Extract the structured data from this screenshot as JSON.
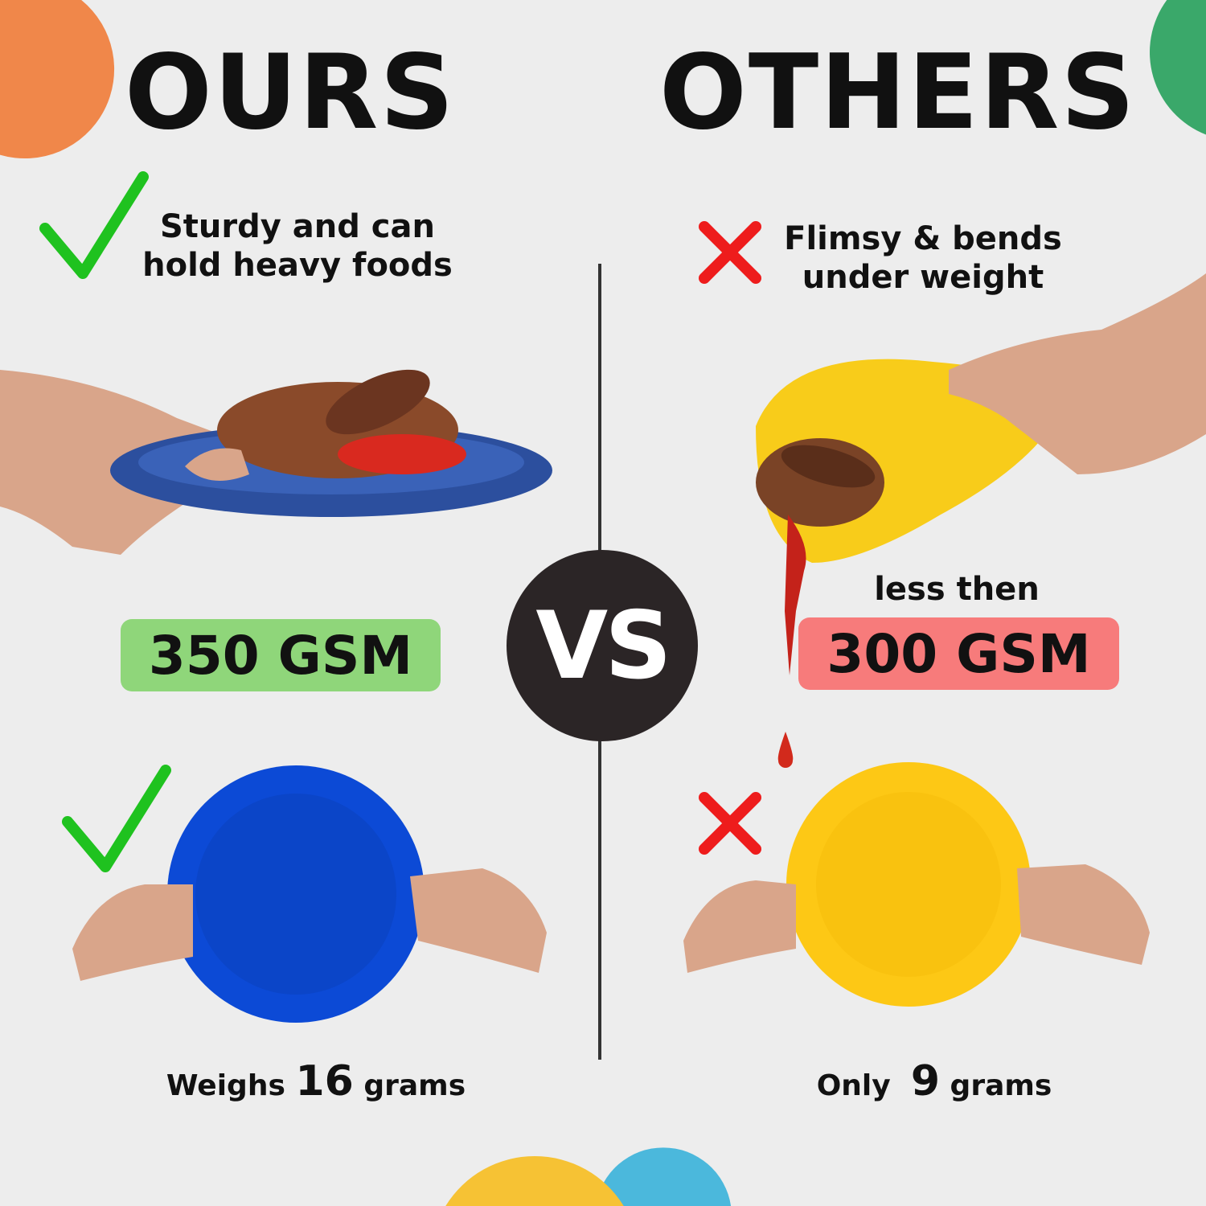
{
  "colors": {
    "background": "#ededed",
    "orange": "#f0874a",
    "green_blob": "#3aa86a",
    "yellow_blob": "#f6c234",
    "blue_blob": "#4bb8dc",
    "check": "#1fc21f",
    "cross": "#ee1c1c",
    "ours_badge": "#8fd67a",
    "others_badge": "#f77b7b",
    "vs_circle": "#2b2526"
  },
  "ours": {
    "title": "OURS",
    "claim_line1": "Sturdy and can",
    "claim_line2": "hold heavy foods",
    "gsm": "350 GSM",
    "weight_prefix": "Weighs",
    "weight_value": "16",
    "weight_suffix": "grams",
    "icon": "check-icon"
  },
  "others": {
    "title": "OTHERS",
    "claim_line1": "Flimsy & bends",
    "claim_line2": "under weight",
    "gsm_prefix": "less then",
    "gsm": "300 GSM",
    "weight_prefix": "Only",
    "weight_value": "9",
    "weight_suffix": "grams",
    "icon": "cross-icon"
  },
  "vs": "VS"
}
